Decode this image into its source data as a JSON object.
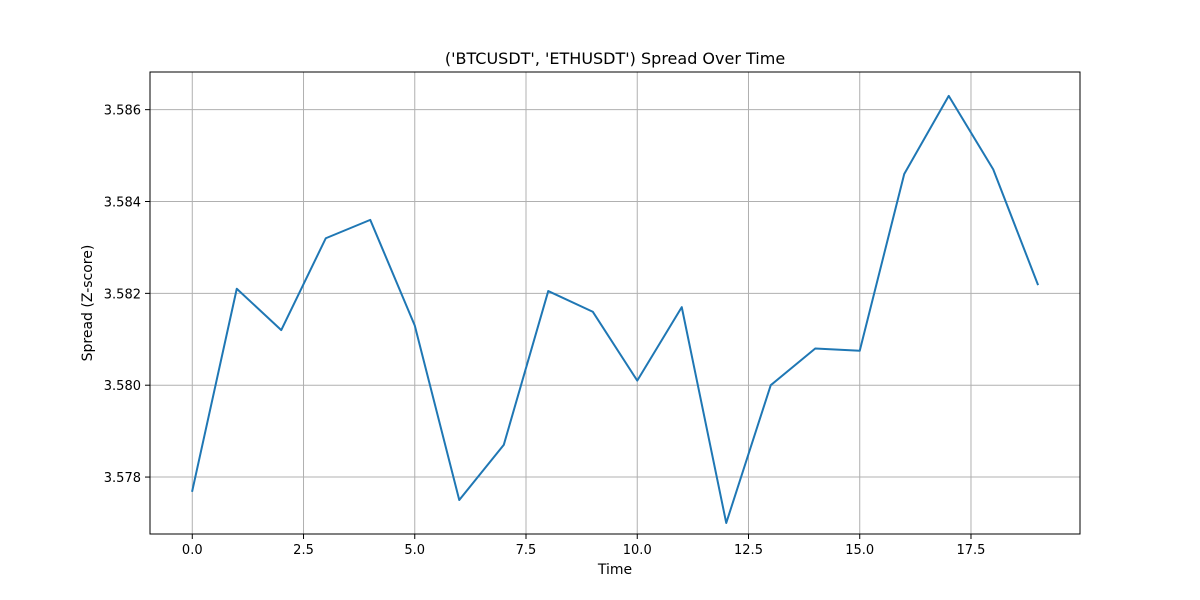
{
  "chart_data": {
    "type": "line",
    "title": "('BTCUSDT', 'ETHUSDT') Spread Over Time",
    "xlabel": "Time",
    "ylabel": "Spread (Z-score)",
    "xlim": [
      -0.95,
      19.95
    ],
    "ylim": [
      3.57676,
      3.58682
    ],
    "x_ticks": [
      0.0,
      2.5,
      5.0,
      7.5,
      10.0,
      12.5,
      15.0,
      17.5
    ],
    "x_tick_labels": [
      "0.0",
      "2.5",
      "5.0",
      "7.5",
      "10.0",
      "12.5",
      "15.0",
      "17.5"
    ],
    "y_ticks": [
      3.578,
      3.58,
      3.582,
      3.584,
      3.586
    ],
    "y_tick_labels": [
      "3.578",
      "3.580",
      "3.582",
      "3.584",
      "3.586"
    ],
    "grid": true,
    "colors": {
      "line": "#1f77b4",
      "grid": "#b0b0b0",
      "axes": "#000000"
    },
    "series": [
      {
        "x": [
          0,
          1,
          2,
          3,
          4,
          5,
          6,
          7,
          8,
          9,
          10,
          11,
          12,
          13,
          14,
          15,
          16,
          17,
          18,
          19
        ],
        "values": [
          3.5777,
          3.5821,
          3.5812,
          3.5832,
          3.5836,
          3.5813,
          3.5775,
          3.5787,
          3.58205,
          3.5816,
          3.5801,
          3.5817,
          3.577,
          3.58,
          3.5808,
          3.58075,
          3.5846,
          3.5863,
          3.5847,
          3.5822
        ]
      }
    ]
  }
}
